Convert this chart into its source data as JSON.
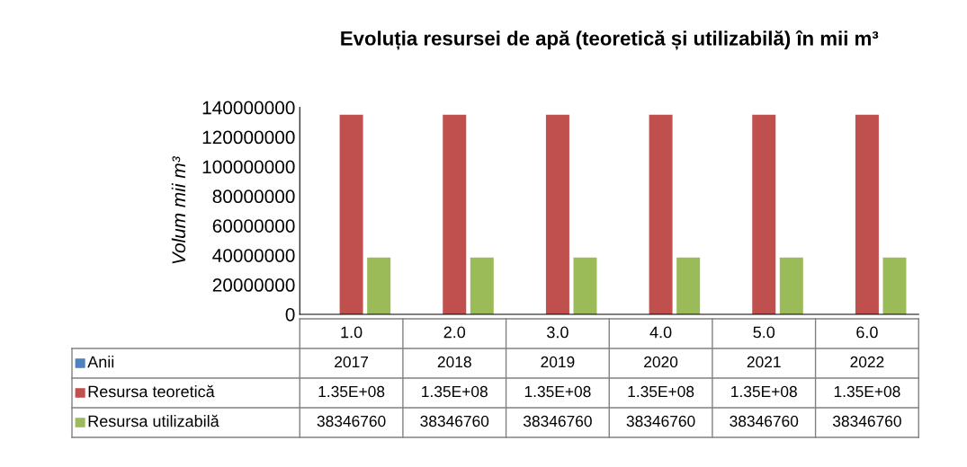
{
  "chart_data": {
    "type": "bar",
    "title": "Evoluția resursei de apă (teoretică și utilizabilă) în mii m³",
    "ylabel": "Volum mii m³",
    "categories": [
      "1.0",
      "2.0",
      "3.0",
      "4.0",
      "5.0",
      "6.0"
    ],
    "series": [
      {
        "name": "Anii",
        "color": "#4f81bd",
        "values": [
          2017,
          2018,
          2019,
          2020,
          2021,
          2022
        ],
        "value_labels": [
          "2017",
          "2018",
          "2019",
          "2020",
          "2021",
          "2022"
        ]
      },
      {
        "name": "Resursa teoretică",
        "color": "#c0504d",
        "values": [
          135000000,
          135000000,
          135000000,
          135000000,
          135000000,
          135000000
        ],
        "value_labels": [
          "1.35E+08",
          "1.35E+08",
          "1.35E+08",
          "1.35E+08",
          "1.35E+08",
          "1.35E+08"
        ]
      },
      {
        "name": "Resursa utilizabilă",
        "color": "#9bbb59",
        "values": [
          38346760,
          38346760,
          38346760,
          38346760,
          38346760,
          38346760
        ],
        "value_labels": [
          "38346760",
          "38346760",
          "38346760",
          "38346760",
          "38346760",
          "38346760"
        ]
      }
    ],
    "ylim": [
      0,
      140000000
    ],
    "yticks": [
      0,
      20000000,
      40000000,
      60000000,
      80000000,
      100000000,
      120000000,
      140000000
    ],
    "grid": false,
    "legend": "bottom",
    "data_labels": true
  }
}
